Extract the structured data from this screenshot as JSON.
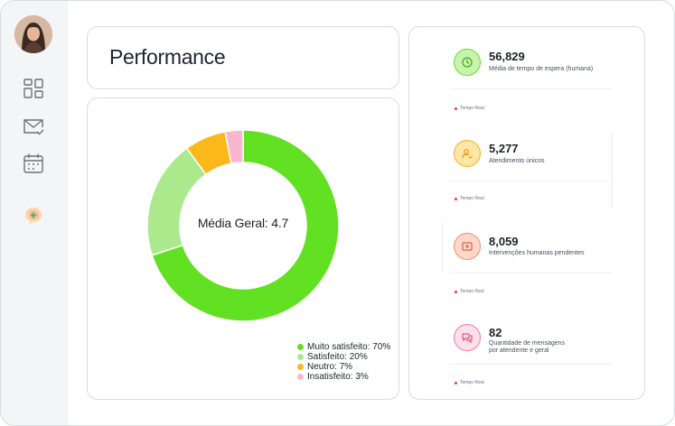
{
  "sidebar": {
    "avatar_icon": "user-avatar",
    "items": [
      {
        "icon": "dashboard-grid-icon"
      },
      {
        "icon": "mail-check-icon"
      },
      {
        "icon": "calendar-icon"
      },
      {
        "icon": "chat-spark-icon"
      }
    ]
  },
  "header": {
    "title": "Performance"
  },
  "chart_data": {
    "type": "pie",
    "variant": "donut",
    "center_label": "Média Geral: 4.7",
    "slices": [
      {
        "label": "Muito satisfeito",
        "value": 70,
        "color": "#62e022"
      },
      {
        "label": "Satisfeito",
        "value": 20,
        "color": "#abe98c"
      },
      {
        "label": "Neutro",
        "value": 7,
        "color": "#fbb81b"
      },
      {
        "label": "Insatisfeito",
        "value": 3,
        "color": "#fbb6cf"
      }
    ],
    "legend": [
      "Muito satisfeito: 70%",
      "Satisfeito: 20%",
      "Neutro: 7%",
      "Insatisfeito: 3%"
    ]
  },
  "stats": [
    {
      "value": "56,829",
      "label": "Média de tempo de espera (humana)",
      "badge": "Tempo Real",
      "icon": "clock-icon",
      "color": "#62e022",
      "bg": "#c8f2ae"
    },
    {
      "value": "5,277",
      "label": "Atendimento únicos",
      "badge": "Tempo Real",
      "icon": "user-check-icon",
      "color": "#f4b21a",
      "bg": "#fde6a8"
    },
    {
      "value": "8,059",
      "label": "Intervenções humanas pendentes",
      "badge": "Tempo Real",
      "icon": "pending-icon",
      "color": "#f28e6b",
      "bg": "#fcd8cb"
    },
    {
      "value": "82",
      "label": "Quantidade de mensagens\npor atendente e geral",
      "badge": "Tempo Real",
      "icon": "messages-icon",
      "color": "#f07a9c",
      "bg": "#fde0ea"
    }
  ]
}
